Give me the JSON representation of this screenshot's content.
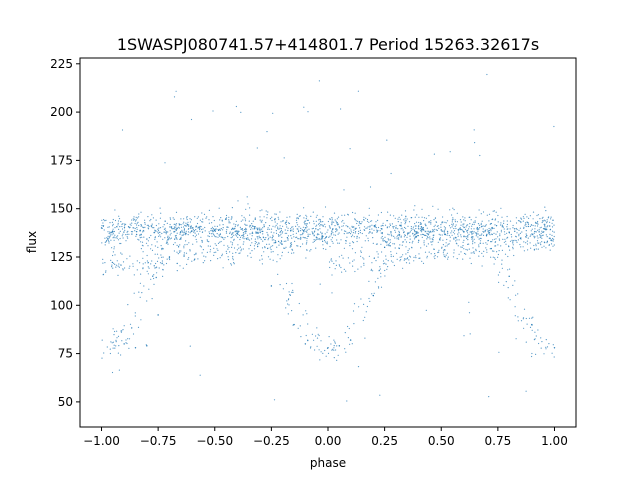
{
  "chart_data": {
    "type": "scatter",
    "title": "1SWASPJ080741.57+414801.7 Period 15263.32617s",
    "xlabel": "phase",
    "ylabel": "flux",
    "xlim": [
      -1.095,
      1.095
    ],
    "ylim": [
      37,
      228
    ],
    "xticks": [
      -1.0,
      -0.75,
      -0.5,
      -0.25,
      0.0,
      0.25,
      0.5,
      0.75,
      1.0
    ],
    "xtick_labels": [
      "−1.00",
      "−0.75",
      "−0.50",
      "−0.25",
      "0.00",
      "0.25",
      "0.50",
      "0.75",
      "1.00"
    ],
    "yticks": [
      50,
      75,
      100,
      125,
      150,
      175,
      200,
      225
    ],
    "ytick_labels": [
      "50",
      "75",
      "100",
      "125",
      "150",
      "175",
      "200",
      "225"
    ],
    "grid": false,
    "marker_color": "#1f77b4",
    "series": [
      {
        "profile_description_values": {
          "phase_range": [
            -1.0,
            1.0
          ],
          "baseline_flux_band": [
            130,
            148
          ],
          "secondary_band": [
            118,
            132
          ],
          "eclipse_minimum_flux": [
            75,
            82
          ],
          "eclipse_phases": [
            -1.0,
            -0.85,
            0.0,
            1.0
          ],
          "outlier_flux_max": 222
        },
        "points": [
          [
            -1.0,
            140
          ],
          [
            -0.95,
            138
          ],
          [
            -0.9,
            80
          ],
          [
            -0.85,
            78
          ],
          [
            -0.8,
            79
          ],
          [
            -0.75,
            95
          ],
          [
            -0.7,
            125
          ],
          [
            -0.65,
            138
          ],
          [
            -0.6,
            140
          ],
          [
            -0.5,
            139
          ],
          [
            -0.4,
            137
          ],
          [
            -0.3,
            135
          ],
          [
            -0.25,
            110
          ],
          [
            -0.15,
            90
          ],
          [
            -0.1,
            80
          ],
          [
            0.0,
            78
          ],
          [
            0.05,
            79
          ],
          [
            0.1,
            82
          ],
          [
            0.2,
            105
          ],
          [
            0.25,
            130
          ],
          [
            0.3,
            140
          ],
          [
            0.4,
            141
          ],
          [
            0.5,
            139
          ],
          [
            0.6,
            138
          ],
          [
            0.7,
            136
          ],
          [
            0.8,
            115
          ],
          [
            0.9,
            90
          ],
          [
            1.0,
            78
          ]
        ]
      }
    ]
  }
}
